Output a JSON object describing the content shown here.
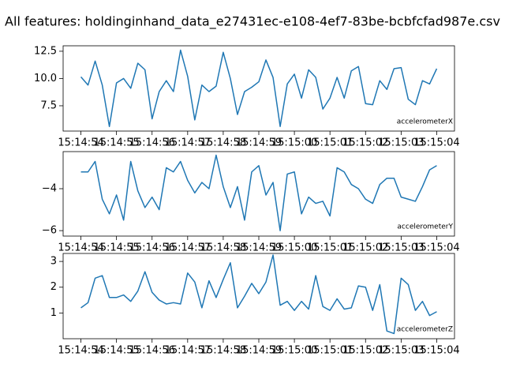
{
  "title": "All features: holdinginhand_data_e27431ec-e108-4ef7-83be-bcbfcfad987e.csv",
  "chart_data": [
    {
      "type": "line",
      "color": "#1f77b4",
      "x": [
        54894.0,
        54894.2,
        54894.4,
        54894.6,
        54894.8,
        54895.0,
        54895.2,
        54895.4,
        54895.6,
        54895.8,
        54896.0,
        54896.2,
        54896.4,
        54896.6,
        54896.8,
        54897.0,
        54897.2,
        54897.4,
        54897.6,
        54897.8,
        54898.0,
        54898.2,
        54898.4,
        54898.6,
        54898.8,
        54899.0,
        54899.2,
        54899.4,
        54899.6,
        54899.8,
        54900.0,
        54900.2,
        54900.4,
        54900.6,
        54900.8,
        54901.0,
        54901.2,
        54901.4,
        54901.6,
        54901.8,
        54902.0,
        54902.2,
        54902.4,
        54902.6,
        54902.8,
        54903.0,
        54903.2,
        54903.4,
        54903.6,
        54903.8,
        54904.0
      ],
      "series": [
        {
          "name": "accelerometerX",
          "color": "#1f77b4",
          "values": [
            10.15,
            9.4,
            11.6,
            9.4,
            5.6,
            9.6,
            10.0,
            9.1,
            11.4,
            10.8,
            6.3,
            8.8,
            9.8,
            8.8,
            12.6,
            10.2,
            6.2,
            9.4,
            8.8,
            9.3,
            12.4,
            10.0,
            6.7,
            8.8,
            9.2,
            9.7,
            11.7,
            10.1,
            5.6,
            9.5,
            10.4,
            8.2,
            10.8,
            10.1,
            7.2,
            8.2,
            10.1,
            8.2,
            10.7,
            11.1,
            7.7,
            7.6,
            9.8,
            9.0,
            10.9,
            11.0,
            8.1,
            7.6,
            9.8,
            9.5,
            10.9
          ]
        }
      ],
      "xlim": [
        54893.5,
        54904.5
      ],
      "xticks": [
        {
          "value": 54894,
          "label": "15:14:54"
        },
        {
          "value": 54895,
          "label": "15:14:55"
        },
        {
          "value": 54896,
          "label": "15:14:56"
        },
        {
          "value": 54897,
          "label": "15:14:57"
        },
        {
          "value": 54898,
          "label": "15:14:58"
        },
        {
          "value": 54899,
          "label": "15:14:59"
        },
        {
          "value": 54900,
          "label": "15:15:00"
        },
        {
          "value": 54901,
          "label": "15:15:01"
        },
        {
          "value": 54902,
          "label": "15:15:02"
        },
        {
          "value": 54903,
          "label": "15:15:03"
        },
        {
          "value": 54904,
          "label": "15:15:04"
        }
      ],
      "ylim": [
        5.18,
        13.0
      ],
      "yticks": [
        {
          "value": 7.5,
          "label": "7.5"
        },
        {
          "value": 10,
          "label": "10.0"
        },
        {
          "value": 12.5,
          "label": "12.5"
        }
      ]
    },
    {
      "type": "line",
      "color": "#1f77b4",
      "x": [
        54894.0,
        54894.2,
        54894.4,
        54894.6,
        54894.8,
        54895.0,
        54895.2,
        54895.4,
        54895.6,
        54895.8,
        54896.0,
        54896.2,
        54896.4,
        54896.6,
        54896.8,
        54897.0,
        54897.2,
        54897.4,
        54897.6,
        54897.8,
        54898.0,
        54898.2,
        54898.4,
        54898.6,
        54898.8,
        54899.0,
        54899.2,
        54899.4,
        54899.6,
        54899.8,
        54900.0,
        54900.2,
        54900.4,
        54900.6,
        54900.8,
        54901.0,
        54901.2,
        54901.4,
        54901.6,
        54901.8,
        54902.0,
        54902.2,
        54902.4,
        54902.6,
        54902.8,
        54903.0,
        54903.2,
        54903.4,
        54903.6,
        54903.8,
        54904.0
      ],
      "series": [
        {
          "name": "accelerometerY",
          "color": "#1f77b4",
          "values": [
            -3.2,
            -3.2,
            -2.7,
            -4.5,
            -5.2,
            -4.3,
            -5.5,
            -2.7,
            -4.1,
            -4.9,
            -4.4,
            -5.0,
            -3.0,
            -3.2,
            -2.7,
            -3.6,
            -4.2,
            -3.7,
            -4.0,
            -2.4,
            -3.9,
            -4.9,
            -3.9,
            -5.5,
            -3.2,
            -2.9,
            -4.3,
            -3.7,
            -6.0,
            -3.3,
            -3.2,
            -5.2,
            -4.4,
            -4.7,
            -4.6,
            -5.3,
            -3.0,
            -3.2,
            -3.8,
            -4.0,
            -4.5,
            -4.7,
            -3.8,
            -3.5,
            -3.5,
            -4.4,
            -4.5,
            -4.6,
            -3.9,
            -3.1,
            -2.9
          ]
        }
      ],
      "xlim": [
        54893.5,
        54904.5
      ],
      "xticks": [
        {
          "value": 54894,
          "label": "15:14:54"
        },
        {
          "value": 54895,
          "label": "15:14:55"
        },
        {
          "value": 54896,
          "label": "15:14:56"
        },
        {
          "value": 54897,
          "label": "15:14:57"
        },
        {
          "value": 54898,
          "label": "15:14:58"
        },
        {
          "value": 54899,
          "label": "15:14:59"
        },
        {
          "value": 54900,
          "label": "15:15:00"
        },
        {
          "value": 54901,
          "label": "15:15:01"
        },
        {
          "value": 54902,
          "label": "15:15:02"
        },
        {
          "value": 54903,
          "label": "15:15:03"
        },
        {
          "value": 54904,
          "label": "15:15:04"
        }
      ],
      "ylim": [
        -6.26,
        -2.23
      ],
      "yticks": [
        {
          "value": -6,
          "label": "−6"
        },
        {
          "value": -4,
          "label": "−4"
        }
      ]
    },
    {
      "type": "line",
      "color": "#1f77b4",
      "x": [
        54894.0,
        54894.2,
        54894.4,
        54894.6,
        54894.8,
        54895.0,
        54895.2,
        54895.4,
        54895.6,
        54895.8,
        54896.0,
        54896.2,
        54896.4,
        54896.6,
        54896.8,
        54897.0,
        54897.2,
        54897.4,
        54897.6,
        54897.8,
        54898.0,
        54898.2,
        54898.4,
        54898.6,
        54898.8,
        54899.0,
        54899.2,
        54899.4,
        54899.6,
        54899.8,
        54900.0,
        54900.2,
        54900.4,
        54900.6,
        54900.8,
        54901.0,
        54901.2,
        54901.4,
        54901.6,
        54901.8,
        54902.0,
        54902.2,
        54902.4,
        54902.6,
        54902.8,
        54903.0,
        54903.2,
        54903.4,
        54903.6,
        54903.8,
        54904.0
      ],
      "series": [
        {
          "name": "accelerometerZ",
          "color": "#1f77b4",
          "values": [
            1.2,
            1.4,
            2.35,
            2.45,
            1.6,
            1.6,
            1.7,
            1.45,
            1.85,
            2.6,
            1.8,
            1.5,
            1.35,
            1.4,
            1.35,
            2.55,
            2.2,
            1.2,
            2.25,
            1.6,
            2.3,
            2.95,
            1.2,
            1.65,
            2.15,
            1.75,
            2.2,
            3.25,
            1.3,
            1.45,
            1.1,
            1.45,
            1.15,
            2.45,
            1.25,
            1.1,
            1.55,
            1.15,
            1.2,
            2.05,
            2.0,
            1.1,
            2.1,
            0.3,
            0.2,
            2.35,
            2.1,
            1.1,
            1.45,
            0.9,
            1.05
          ]
        }
      ],
      "xlim": [
        54893.5,
        54904.5
      ],
      "xticks": [
        {
          "value": 54894,
          "label": "15:14:54"
        },
        {
          "value": 54895,
          "label": "15:14:55"
        },
        {
          "value": 54896,
          "label": "15:14:56"
        },
        {
          "value": 54897,
          "label": "15:14:57"
        },
        {
          "value": 54898,
          "label": "15:14:58"
        },
        {
          "value": 54899,
          "label": "15:14:59"
        },
        {
          "value": 54900,
          "label": "15:15:00"
        },
        {
          "value": 54901,
          "label": "15:15:01"
        },
        {
          "value": 54902,
          "label": "15:15:02"
        },
        {
          "value": 54903,
          "label": "15:15:03"
        },
        {
          "value": 54904,
          "label": "15:15:04"
        }
      ],
      "ylim": [
        0.0,
        3.31
      ],
      "yticks": [
        1,
        2,
        3
      ]
    }
  ]
}
